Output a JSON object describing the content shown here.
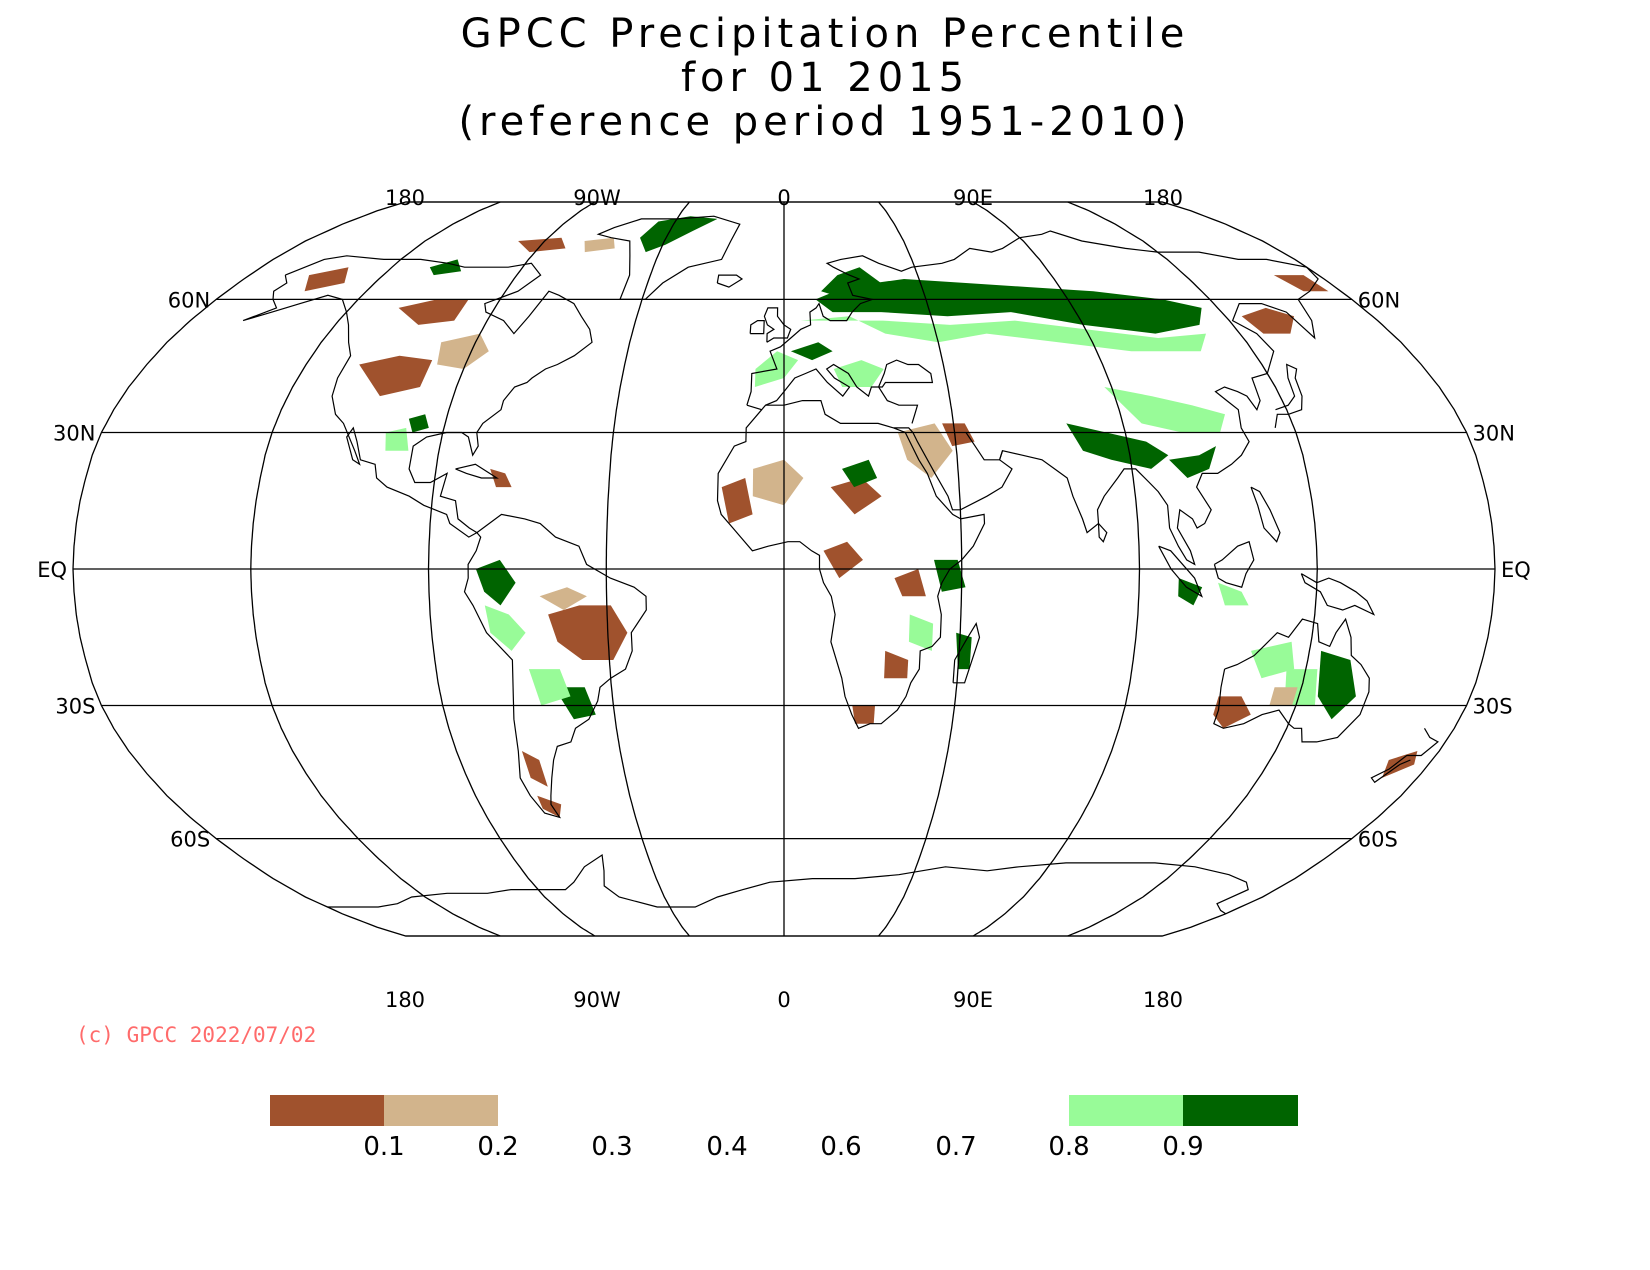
{
  "title": {
    "line1": "GPCC Precipitation Percentile",
    "line2": "for 01 2015",
    "line3": "(reference period 1951-2010)"
  },
  "map": {
    "projection": "Robinson",
    "center_longitude": 0,
    "top_lon_labels": [
      "180",
      "90W",
      "0",
      "90E",
      "180"
    ],
    "bottom_lon_labels": [
      "180",
      "90W",
      "0",
      "90E",
      "180"
    ],
    "lat_labels_left": [
      "60N",
      "30N",
      "EQ",
      "30S",
      "60S"
    ],
    "lat_labels_right": [
      "60N",
      "30N",
      "EQ",
      "30S",
      "60S"
    ],
    "colors": {
      "below_0_1": "#a0522d",
      "0_1_to_0_2": "#d2b48c",
      "0_8_to_0_9": "#98fb98",
      "above_0_9": "#006400"
    },
    "highlighted_regions": [
      {
        "name": "Greenland",
        "class": "above_0_9"
      },
      {
        "name": "Northern Eurasia",
        "class": "above_0_9"
      },
      {
        "name": "Central Brazil",
        "class": "below_0_1"
      },
      {
        "name": "Eastern Australia",
        "class": "above_0_9"
      },
      {
        "name": "Western Australia",
        "class": "below_0_1"
      },
      {
        "name": "Southern Africa",
        "class": "below_0_1"
      }
    ]
  },
  "copyright": "(c) GPCC 2022/07/02",
  "colorbar": {
    "ticks": [
      "0.1",
      "0.2",
      "0.3",
      "0.4",
      "0.6",
      "0.7",
      "0.8",
      "0.9"
    ],
    "boxes": [
      {
        "from": "",
        "to": "0.1",
        "color": "#a0522d"
      },
      {
        "from": "0.1",
        "to": "0.2",
        "color": "#d2b48c"
      },
      {
        "from": "0.8",
        "to": "0.9",
        "color": "#98fb98"
      },
      {
        "from": "0.9",
        "to": "",
        "color": "#006400"
      }
    ]
  }
}
